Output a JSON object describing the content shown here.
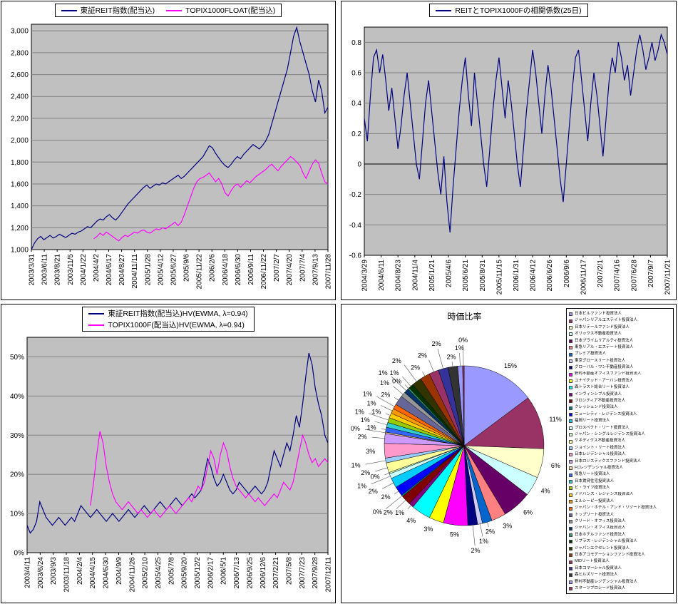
{
  "charts": [
    {
      "id": "reit-index",
      "type": "line",
      "ylim": [
        1000,
        3060
      ],
      "yticks": [
        1000,
        1200,
        1400,
        1600,
        1800,
        2000,
        2200,
        2400,
        2600,
        2800,
        3000
      ],
      "ytick_labels": [
        "1,000",
        "1,200",
        "1,400",
        "1,600",
        "1,800",
        "2,000",
        "2,200",
        "2,400",
        "2,600",
        "2,800",
        "3,000"
      ],
      "xtick_labels": [
        "2003/3/31",
        "2003/6/11",
        "2003/8/21",
        "2003/11/5",
        "2004/1/22",
        "2004/4/2",
        "2004/6/17",
        "2004/8/27",
        "2004/11/11",
        "2005/1/28",
        "2005/4/12",
        "2005/6/27",
        "2005/9/6",
        "2005/11/22",
        "2006/2/6",
        "2006/4/18",
        "2006/6/30",
        "2006/9/11",
        "2006/11/22",
        "2007/2/7",
        "2007/4/20",
        "2007/7/4",
        "2007/9/13",
        "2007/11/28"
      ],
      "series": [
        {
          "name": "東証REIT指数(配当込)",
          "color": "#000080",
          "values": [
            1000,
            1060,
            1100,
            1120,
            1090,
            1110,
            1130,
            1105,
            1120,
            1140,
            1125,
            1110,
            1130,
            1150,
            1140,
            1160,
            1170,
            1190,
            1210,
            1200,
            1230,
            1260,
            1280,
            1270,
            1300,
            1320,
            1290,
            1270,
            1300,
            1340,
            1380,
            1420,
            1450,
            1480,
            1510,
            1540,
            1570,
            1590,
            1560,
            1580,
            1600,
            1590,
            1610,
            1600,
            1620,
            1640,
            1660,
            1680,
            1650,
            1670,
            1700,
            1730,
            1760,
            1790,
            1820,
            1850,
            1900,
            1950,
            1930,
            1880,
            1840,
            1800,
            1770,
            1750,
            1780,
            1820,
            1850,
            1830,
            1870,
            1900,
            1930,
            1960,
            1940,
            1920,
            1950,
            1990,
            2050,
            2150,
            2250,
            2350,
            2450,
            2550,
            2650,
            2800,
            2950,
            3030,
            2900,
            2800,
            2700,
            2600,
            2450,
            2350,
            2550,
            2450,
            2250,
            2300
          ]
        },
        {
          "name": "TOPIX1000FLOAT(配当込)",
          "color": "#FF00FF",
          "values": [
            null,
            null,
            null,
            null,
            null,
            null,
            null,
            null,
            null,
            null,
            null,
            null,
            null,
            null,
            null,
            null,
            null,
            null,
            null,
            null,
            1100,
            1120,
            1150,
            1130,
            1160,
            1140,
            1120,
            1100,
            1080,
            1110,
            1130,
            1120,
            1140,
            1160,
            1150,
            1170,
            1180,
            1160,
            1150,
            1170,
            1190,
            1180,
            1200,
            1190,
            1210,
            1230,
            1250,
            1220,
            1250,
            1320,
            1400,
            1480,
            1560,
            1620,
            1650,
            1660,
            1680,
            1700,
            1660,
            1620,
            1650,
            1600,
            1520,
            1490,
            1540,
            1580,
            1600,
            1570,
            1600,
            1630,
            1610,
            1640,
            1670,
            1690,
            1710,
            1730,
            1760,
            1780,
            1750,
            1720,
            1760,
            1790,
            1820,
            1850,
            1830,
            1800,
            1770,
            1700,
            1650,
            1720,
            1780,
            1820,
            1790,
            1700,
            1620,
            1600
          ]
        }
      ]
    },
    {
      "id": "correlation",
      "type": "line",
      "ylim": [
        -0.6,
        0.9
      ],
      "axis_at": 0,
      "yticks": [
        -0.6,
        -0.4,
        -0.2,
        0,
        0.2,
        0.4,
        0.6,
        0.8
      ],
      "ytick_labels": [
        "-0.6",
        "-0.4",
        "-0.2",
        "0",
        "0.2",
        "0.4",
        "0.6",
        "0.8"
      ],
      "xtick_labels": [
        "2004/3/29",
        "2004/6/11",
        "2004/8/23",
        "2004/11/4",
        "2005/1/21",
        "2005/4/6",
        "2005/6/21",
        "2005/8/31",
        "2005/11/15",
        "2006/1/31",
        "2006/4/12",
        "2006/6/26",
        "2006/9/6",
        "2006/11/17",
        "2007/2/1",
        "2007/4/16",
        "2007/6/28",
        "2007/9/7",
        "2007/11/21"
      ],
      "series": [
        {
          "name": "REITとTOPIX1000Fの相関係数(25日)",
          "color": "#000080",
          "values": [
            0.3,
            0.15,
            0.45,
            0.7,
            0.75,
            0.6,
            0.72,
            0.55,
            0.35,
            0.5,
            0.3,
            0.1,
            0.25,
            0.45,
            0.6,
            0.4,
            0.2,
            0.0,
            -0.1,
            0.15,
            0.4,
            0.55,
            0.35,
            0.15,
            -0.05,
            -0.2,
            0.05,
            -0.25,
            -0.45,
            -0.15,
            0.1,
            0.35,
            0.55,
            0.7,
            0.45,
            0.25,
            0.6,
            0.4,
            0.2,
            0.0,
            -0.15,
            0.1,
            0.35,
            0.55,
            0.7,
            0.5,
            0.3,
            0.55,
            0.4,
            0.2,
            0.0,
            -0.15,
            0.1,
            0.35,
            0.55,
            0.75,
            0.6,
            0.4,
            0.2,
            0.45,
            0.65,
            0.5,
            0.3,
            0.1,
            -0.1,
            -0.25,
            0.0,
            0.25,
            0.5,
            0.7,
            0.75,
            0.55,
            0.35,
            0.15,
            0.4,
            0.6,
            0.45,
            0.25,
            0.05,
            0.3,
            0.55,
            0.7,
            0.6,
            0.8,
            0.7,
            0.55,
            0.65,
            0.45,
            0.6,
            0.75,
            0.85,
            0.75,
            0.62,
            0.7,
            0.8,
            0.68,
            0.75,
            0.85,
            0.8,
            0.72
          ]
        }
      ]
    },
    {
      "id": "volatility",
      "type": "line",
      "ylim": [
        0,
        0.55
      ],
      "yticks": [
        0,
        0.1,
        0.2,
        0.3,
        0.4,
        0.5
      ],
      "ytick_labels": [
        "0%",
        "10%",
        "20%",
        "30%",
        "40%",
        "50%"
      ],
      "xtick_labels": [
        "2003/4/11",
        "2003/6/24",
        "2003/9/3",
        "2003/11/18",
        "2004/2/4",
        "2004/4/15",
        "2004/6/30",
        "2004/9/9",
        "2004/11/26",
        "2005/2/10",
        "2005/4/25",
        "2005/7/8",
        "2005/9/20",
        "2005/12/2",
        "2006/2/17",
        "2006/5/1",
        "2006/7/13",
        "2006/9/25",
        "2006/12/6",
        "2007/2/21",
        "2007/5/8",
        "2007/7/23",
        "2007/9/28",
        "2007/12/11"
      ],
      "series": [
        {
          "name": "東証REIT指数(配当込)HV(EWMA, λ=0.94)",
          "color": "#000080",
          "values": [
            0.07,
            0.05,
            0.06,
            0.08,
            0.13,
            0.11,
            0.09,
            0.08,
            0.07,
            0.08,
            0.09,
            0.08,
            0.07,
            0.08,
            0.09,
            0.08,
            0.1,
            0.12,
            0.11,
            0.1,
            0.09,
            0.1,
            0.11,
            0.1,
            0.09,
            0.08,
            0.09,
            0.1,
            0.09,
            0.08,
            0.09,
            0.1,
            0.11,
            0.1,
            0.09,
            0.1,
            0.11,
            0.12,
            0.11,
            0.1,
            0.11,
            0.12,
            0.13,
            0.12,
            0.11,
            0.12,
            0.13,
            0.14,
            0.13,
            0.12,
            0.13,
            0.14,
            0.15,
            0.14,
            0.15,
            0.16,
            0.2,
            0.24,
            0.22,
            0.19,
            0.17,
            0.18,
            0.2,
            0.18,
            0.16,
            0.15,
            0.16,
            0.18,
            0.17,
            0.16,
            0.15,
            0.16,
            0.17,
            0.16,
            0.15,
            0.16,
            0.18,
            0.22,
            0.26,
            0.24,
            0.22,
            0.25,
            0.28,
            0.26,
            0.3,
            0.35,
            0.32,
            0.38,
            0.45,
            0.51,
            0.48,
            0.42,
            0.38,
            0.35,
            0.3,
            0.28
          ]
        },
        {
          "name": "TOPIX1000F(配当込)HV(EWMA, λ=0.94)",
          "color": "#FF00FF",
          "values": [
            null,
            null,
            null,
            null,
            null,
            null,
            null,
            null,
            null,
            null,
            null,
            null,
            null,
            null,
            null,
            null,
            null,
            null,
            null,
            null,
            0.12,
            0.18,
            0.25,
            0.31,
            0.28,
            0.22,
            0.18,
            0.15,
            0.13,
            0.12,
            0.11,
            0.12,
            0.13,
            0.12,
            0.11,
            0.1,
            0.11,
            0.1,
            0.09,
            0.1,
            0.11,
            0.1,
            0.09,
            0.1,
            0.11,
            0.12,
            0.11,
            0.1,
            0.11,
            0.12,
            0.13,
            0.14,
            0.13,
            0.15,
            0.17,
            0.16,
            0.18,
            0.22,
            0.26,
            0.24,
            0.2,
            0.25,
            0.28,
            0.26,
            0.22,
            0.19,
            0.17,
            0.16,
            0.15,
            0.14,
            0.15,
            0.14,
            0.13,
            0.14,
            0.13,
            0.12,
            0.13,
            0.14,
            0.15,
            0.14,
            0.16,
            0.18,
            0.17,
            0.16,
            0.18,
            0.22,
            0.26,
            0.3,
            0.28,
            0.25,
            0.23,
            0.24,
            0.22,
            0.23,
            0.24,
            0.23
          ]
        }
      ]
    },
    {
      "id": "market-cap-share",
      "type": "pie",
      "title": "時価比率",
      "items": [
        {
          "label": "日本ビルファンド投資法人",
          "value": 15,
          "color": "#9999FF"
        },
        {
          "label": "ジャパンリアルエステイト投資法人",
          "value": 11,
          "color": "#993366"
        },
        {
          "label": "日本リテールファンド投資法人",
          "value": 6,
          "color": "#FFFFCC"
        },
        {
          "label": "オリックス不動産投資法人",
          "value": 4,
          "color": "#CCFFFF"
        },
        {
          "label": "日本プライムリアルティ投資法人",
          "value": 6,
          "color": "#660066"
        },
        {
          "label": "東急リアル・エステート投資法人",
          "value": 3,
          "color": "#FF8080"
        },
        {
          "label": "プレミア投資法人",
          "value": 2,
          "color": "#0066CC"
        },
        {
          "label": "東京グロースリート投資法人",
          "value": 1,
          "color": "#CCCCFF"
        },
        {
          "label": "グローバル・ワン不動産投資法人",
          "value": 2,
          "color": "#000080"
        },
        {
          "label": "野村不動産オフィスファンド投資法人",
          "value": 5,
          "color": "#FF00FF"
        },
        {
          "label": "ユナイテッド・アーバン投資法人",
          "value": 3,
          "color": "#FFFF00"
        },
        {
          "label": "森トラスト総合リート投資法人",
          "value": 4,
          "color": "#00FFFF"
        },
        {
          "label": "インヴィンシブル投資法人",
          "value": 1,
          "color": "#800080"
        },
        {
          "label": "フロンティア不動産投資法人",
          "value": 2,
          "color": "#800000"
        },
        {
          "label": "クレッシェンド投資法人",
          "value": 0,
          "color": "#008080"
        },
        {
          "label": "ニューシティ・レジデンス投資法人",
          "value": 2,
          "color": "#0000FF"
        },
        {
          "label": "福岡リート投資法人",
          "value": 2,
          "color": "#00CCFF"
        },
        {
          "label": "プロスペクト・リート投資法人",
          "value": 1,
          "color": "#CCFFFF"
        },
        {
          "label": "ジャパン・シングルレジデンス投資法人",
          "value": 0,
          "color": "#CCFFCC"
        },
        {
          "label": "ケネディクス不動産投資法人",
          "value": 2,
          "color": "#FFFF99"
        },
        {
          "label": "ジョイント・リート投資法人",
          "value": 1,
          "color": "#99CCFF"
        },
        {
          "label": "日本レジデンシャル投資法人",
          "value": 3,
          "color": "#FF99CC"
        },
        {
          "label": "日本ロジスティクスファンド投資法人",
          "value": 2,
          "color": "#CC99FF"
        },
        {
          "label": "FCレジデンシャル投資法人",
          "value": 0,
          "color": "#FFCC99"
        },
        {
          "label": "阪急リート投資法人",
          "value": 1,
          "color": "#3366FF"
        },
        {
          "label": "日本賃貸住宅投資法人",
          "value": 1,
          "color": "#33CCCC"
        },
        {
          "label": "ビ・ライフ投資法人",
          "value": 1,
          "color": "#99CC00"
        },
        {
          "label": "アドバンス・レジデンス投資法人",
          "value": 1,
          "color": "#FFCC00"
        },
        {
          "label": "エルシーピー投資法人",
          "value": 1,
          "color": "#FF9900"
        },
        {
          "label": "ジャパン・ホテル・アンド・リゾート投資法人",
          "value": 1,
          "color": "#FF6600"
        },
        {
          "label": "トップリート投資法人",
          "value": 2,
          "color": "#666699"
        },
        {
          "label": "クリード・オフィス投資法人",
          "value": 1,
          "color": "#969696"
        },
        {
          "label": "ジャパン・オフィス投資法人",
          "value": 1,
          "color": "#003366"
        },
        {
          "label": "日本ホテルファンド投資法人",
          "value": 0,
          "color": "#339966"
        },
        {
          "label": "リプラス・レジデンシャル投資法人",
          "value": 1,
          "color": "#003300"
        },
        {
          "label": "ジャパンエクセレント投資法人",
          "value": 2,
          "color": "#333300"
        },
        {
          "label": "日本アコモデーションファンド投資法人",
          "value": 2,
          "color": "#993300"
        },
        {
          "label": "MIDリート投資法人",
          "value": 2,
          "color": "#993366"
        },
        {
          "label": "日本コマーシャル投資法人",
          "value": 2,
          "color": "#333399"
        },
        {
          "label": "森ヒルズリート投資法人",
          "value": 2,
          "color": "#333333"
        },
        {
          "label": "野村不動産レジデンシャル投資法人",
          "value": 1,
          "color": "#9999FF"
        },
        {
          "label": "スターツプロシード投資法人",
          "value": 0,
          "color": "#993366"
        }
      ]
    }
  ]
}
